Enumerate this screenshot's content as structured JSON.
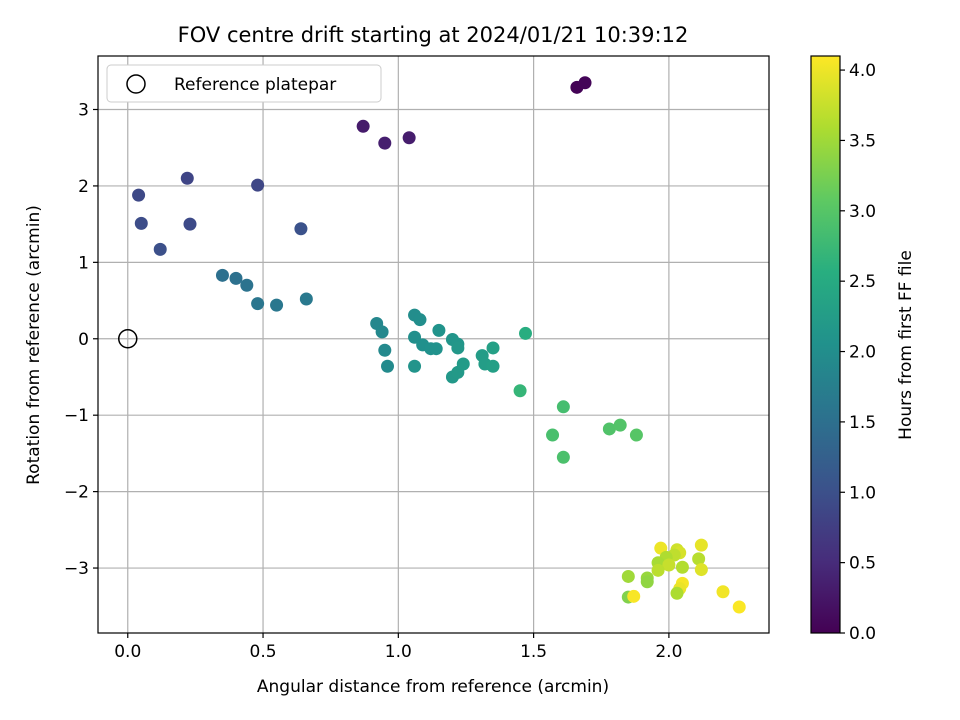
{
  "chart_data": {
    "type": "scatter",
    "title": "FOV centre drift starting at 2024/01/21 10:39:12",
    "xlabel": "Angular distance from reference (arcmin)",
    "ylabel": "Rotation from reference (arcmin)",
    "xlim": [
      -0.11,
      2.37
    ],
    "ylim": [
      -3.85,
      3.7
    ],
    "xticks": [
      0.0,
      0.5,
      1.0,
      1.5,
      2.0
    ],
    "xtick_labels": [
      "0.0",
      "0.5",
      "1.0",
      "1.5",
      "2.0"
    ],
    "yticks": [
      -3,
      -2,
      -1,
      0,
      1,
      2,
      3
    ],
    "ytick_labels": [
      "−3",
      "−2",
      "−1",
      "0",
      "1",
      "2",
      "3"
    ],
    "grid": true,
    "legend": {
      "placement": "upper-left",
      "entries": [
        {
          "label": "Reference platepar",
          "marker": "open-circle"
        }
      ]
    },
    "reference_point": {
      "x": 0.0,
      "y": 0.0
    },
    "colorbar": {
      "label": "Hours from first FF file",
      "range": [
        0.0,
        4.1
      ],
      "ticks": [
        0.0,
        0.5,
        1.0,
        1.5,
        2.0,
        2.5,
        3.0,
        3.5,
        4.0
      ],
      "tick_labels": [
        "0.0",
        "0.5",
        "1.0",
        "1.5",
        "2.0",
        "2.5",
        "3.0",
        "3.5",
        "4.0"
      ],
      "colormap": "viridis"
    },
    "points": [
      {
        "x": 1.66,
        "y": 3.29,
        "t": 0.02
      },
      {
        "x": 1.69,
        "y": 3.35,
        "t": 0.05
      },
      {
        "x": 0.87,
        "y": 2.78,
        "t": 0.3
      },
      {
        "x": 0.95,
        "y": 2.56,
        "t": 0.35
      },
      {
        "x": 1.04,
        "y": 2.63,
        "t": 0.33
      },
      {
        "x": 0.04,
        "y": 1.88,
        "t": 0.9
      },
      {
        "x": 0.05,
        "y": 1.51,
        "t": 0.95
      },
      {
        "x": 0.12,
        "y": 1.17,
        "t": 1.0
      },
      {
        "x": 0.22,
        "y": 2.1,
        "t": 0.85
      },
      {
        "x": 0.23,
        "y": 1.5,
        "t": 0.92
      },
      {
        "x": 0.48,
        "y": 2.01,
        "t": 0.87
      },
      {
        "x": 0.64,
        "y": 1.44,
        "t": 1.02
      },
      {
        "x": 0.35,
        "y": 0.83,
        "t": 1.5
      },
      {
        "x": 0.4,
        "y": 0.79,
        "t": 1.52
      },
      {
        "x": 0.44,
        "y": 0.7,
        "t": 1.55
      },
      {
        "x": 0.48,
        "y": 0.46,
        "t": 1.6
      },
      {
        "x": 0.55,
        "y": 0.44,
        "t": 1.62
      },
      {
        "x": 0.66,
        "y": 0.52,
        "t": 1.65
      },
      {
        "x": 0.92,
        "y": 0.2,
        "t": 1.88
      },
      {
        "x": 0.94,
        "y": 0.09,
        "t": 1.9
      },
      {
        "x": 0.95,
        "y": -0.15,
        "t": 1.92
      },
      {
        "x": 0.96,
        "y": -0.36,
        "t": 1.94
      },
      {
        "x": 1.06,
        "y": 0.31,
        "t": 1.98
      },
      {
        "x": 1.08,
        "y": 0.25,
        "t": 2.0
      },
      {
        "x": 1.06,
        "y": 0.02,
        "t": 2.02
      },
      {
        "x": 1.09,
        "y": -0.08,
        "t": 2.04
      },
      {
        "x": 1.12,
        "y": -0.13,
        "t": 2.05
      },
      {
        "x": 1.14,
        "y": -0.13,
        "t": 2.07
      },
      {
        "x": 1.15,
        "y": 0.11,
        "t": 2.08
      },
      {
        "x": 1.06,
        "y": -0.36,
        "t": 2.1
      },
      {
        "x": 1.2,
        "y": -0.01,
        "t": 2.12
      },
      {
        "x": 1.22,
        "y": -0.07,
        "t": 2.14
      },
      {
        "x": 1.22,
        "y": -0.12,
        "t": 2.16
      },
      {
        "x": 1.2,
        "y": -0.5,
        "t": 2.18
      },
      {
        "x": 1.22,
        "y": -0.44,
        "t": 2.2
      },
      {
        "x": 1.24,
        "y": -0.33,
        "t": 2.22
      },
      {
        "x": 1.31,
        "y": -0.22,
        "t": 2.25
      },
      {
        "x": 1.32,
        "y": -0.33,
        "t": 2.27
      },
      {
        "x": 1.35,
        "y": -0.36,
        "t": 2.3
      },
      {
        "x": 1.35,
        "y": -0.12,
        "t": 2.32
      },
      {
        "x": 1.47,
        "y": 0.07,
        "t": 2.55
      },
      {
        "x": 1.45,
        "y": -0.68,
        "t": 2.7
      },
      {
        "x": 1.61,
        "y": -0.89,
        "t": 2.85
      },
      {
        "x": 1.57,
        "y": -1.26,
        "t": 2.88
      },
      {
        "x": 1.61,
        "y": -1.55,
        "t": 2.9
      },
      {
        "x": 1.78,
        "y": -1.18,
        "t": 2.95
      },
      {
        "x": 1.82,
        "y": -1.13,
        "t": 2.97
      },
      {
        "x": 1.88,
        "y": -1.26,
        "t": 3.0
      },
      {
        "x": 1.97,
        "y": -2.74,
        "t": 4.0
      },
      {
        "x": 2.12,
        "y": -2.7,
        "t": 3.95
      },
      {
        "x": 2.03,
        "y": -2.76,
        "t": 3.8
      },
      {
        "x": 2.04,
        "y": -2.8,
        "t": 3.85
      },
      {
        "x": 2.02,
        "y": -2.83,
        "t": 3.7
      },
      {
        "x": 1.99,
        "y": -2.86,
        "t": 3.6
      },
      {
        "x": 2.11,
        "y": -2.88,
        "t": 3.65
      },
      {
        "x": 1.96,
        "y": -2.93,
        "t": 3.55
      },
      {
        "x": 2.0,
        "y": -2.96,
        "t": 3.75
      },
      {
        "x": 2.05,
        "y": -2.99,
        "t": 3.62
      },
      {
        "x": 1.96,
        "y": -3.03,
        "t": 3.68
      },
      {
        "x": 2.12,
        "y": -3.02,
        "t": 3.9
      },
      {
        "x": 1.85,
        "y": -3.11,
        "t": 3.5
      },
      {
        "x": 1.92,
        "y": -3.13,
        "t": 3.45
      },
      {
        "x": 1.92,
        "y": -3.18,
        "t": 3.4
      },
      {
        "x": 2.05,
        "y": -3.2,
        "t": 4.05
      },
      {
        "x": 2.04,
        "y": -3.27,
        "t": 3.98
      },
      {
        "x": 2.03,
        "y": -3.33,
        "t": 3.58
      },
      {
        "x": 2.2,
        "y": -3.31,
        "t": 4.02
      },
      {
        "x": 1.85,
        "y": -3.38,
        "t": 3.3
      },
      {
        "x": 1.87,
        "y": -3.37,
        "t": 4.07
      },
      {
        "x": 2.26,
        "y": -3.51,
        "t": 4.08
      }
    ]
  }
}
